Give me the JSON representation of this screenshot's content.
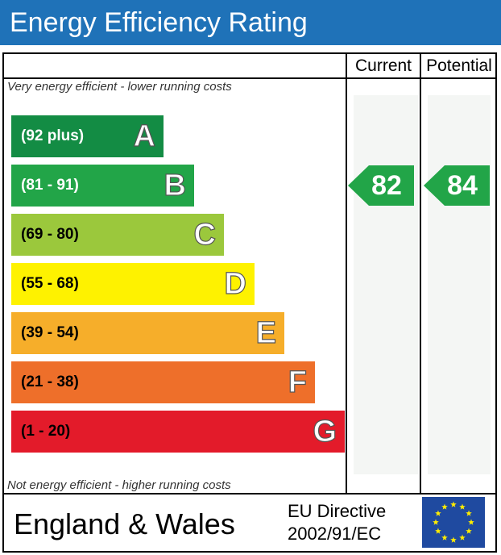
{
  "title": "Energy Efficiency Rating",
  "columns": {
    "current": "Current",
    "potential": "Potential"
  },
  "captions": {
    "top": "Very energy efficient - lower running costs",
    "bottom": "Not energy efficient - higher running costs"
  },
  "chart_data": {
    "type": "bar",
    "title": "Energy Efficiency Rating",
    "categories": [
      "A",
      "B",
      "C",
      "D",
      "E",
      "F",
      "G"
    ],
    "ranges": [
      "(92 plus)",
      "(81 - 91)",
      "(69 - 80)",
      "(55 - 68)",
      "(39 - 54)",
      "(21 - 38)",
      "(1 - 20)"
    ],
    "colors": [
      "#138c44",
      "#22a548",
      "#9bc83c",
      "#fef200",
      "#f6ae2a",
      "#ee6f2a",
      "#e31b2a"
    ],
    "current": {
      "label": "Current",
      "value": 82,
      "band": "B"
    },
    "potential": {
      "label": "Potential",
      "value": 84,
      "band": "B"
    }
  },
  "bands": [
    {
      "letter": "A",
      "range": "(92 plus)",
      "color": "#138c44",
      "light_text": true
    },
    {
      "letter": "B",
      "range": "(81 - 91)",
      "color": "#22a548",
      "light_text": true
    },
    {
      "letter": "C",
      "range": "(69 - 80)",
      "color": "#9bc83c",
      "light_text": false
    },
    {
      "letter": "D",
      "range": "(55 - 68)",
      "color": "#fef200",
      "light_text": false
    },
    {
      "letter": "E",
      "range": "(39 - 54)",
      "color": "#f6ae2a",
      "light_text": false
    },
    {
      "letter": "F",
      "range": "(21 - 38)",
      "color": "#ee6f2a",
      "light_text": false
    },
    {
      "letter": "G",
      "range": "(1 - 20)",
      "color": "#e31b2a",
      "light_text": false
    }
  ],
  "ratings": {
    "current": {
      "value": "82",
      "color": "#22a548"
    },
    "potential": {
      "value": "84",
      "color": "#22a548"
    }
  },
  "footer": {
    "region": "England & Wales",
    "directive_line1": "EU Directive",
    "directive_line2": "2002/91/EC"
  },
  "colors": {
    "header": "#1f72b8",
    "eu_flag": "#1f4aa0",
    "eu_stars": "#ffed00"
  },
  "icons": {
    "eu_flag": "eu-flag-icon"
  }
}
